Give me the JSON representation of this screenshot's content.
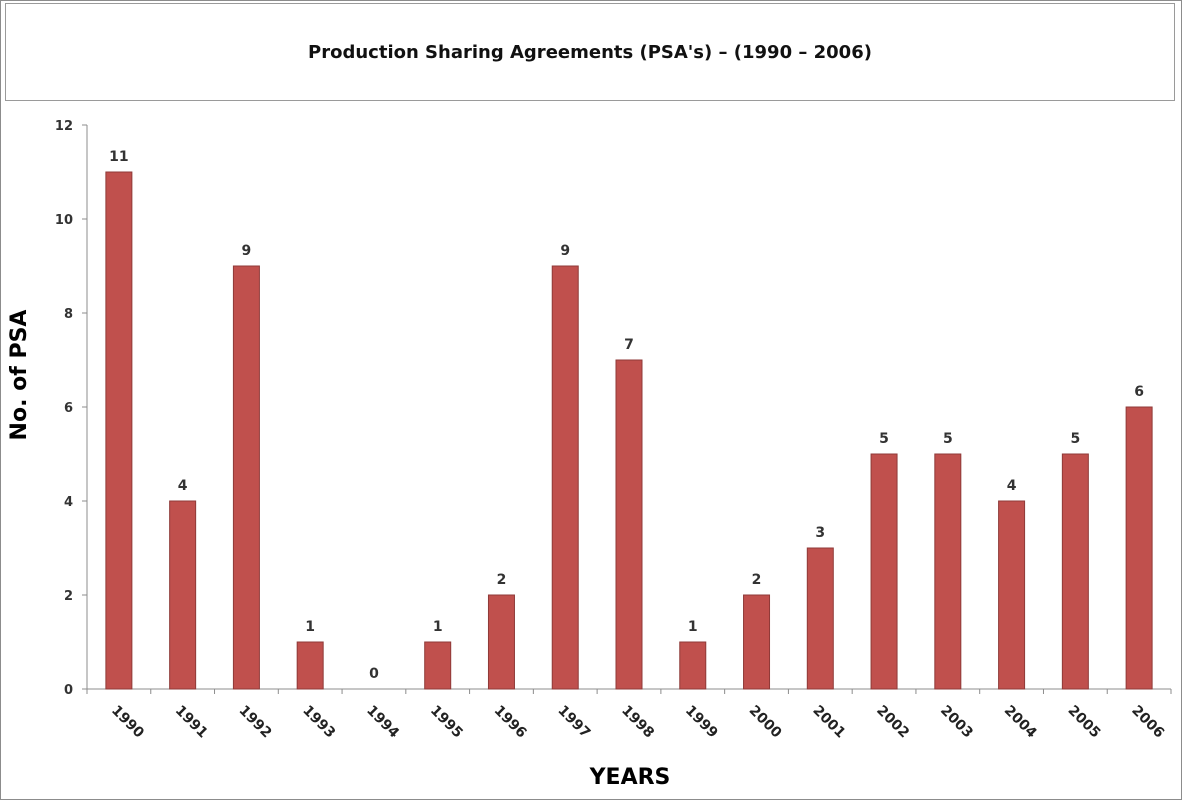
{
  "chart_data": {
    "type": "bar",
    "title": "Production Sharing Agreements (PSA's) – (1990 – 2006)",
    "xlabel": "YEARS",
    "ylabel": "No. of PSA",
    "categories": [
      "1990",
      "1991",
      "1992",
      "1993",
      "1994",
      "1995",
      "1996",
      "1997",
      "1998",
      "1999",
      "2000",
      "2001",
      "2002",
      "2003",
      "2004",
      "2005",
      "2006"
    ],
    "values": [
      11,
      4,
      9,
      1,
      0,
      1,
      2,
      9,
      7,
      1,
      2,
      3,
      5,
      5,
      4,
      5,
      6
    ],
    "ylim": [
      0,
      12
    ],
    "yticks": [
      0,
      2,
      4,
      6,
      8,
      10,
      12
    ],
    "grid": false,
    "legend": "none",
    "bar_color": "#c0504d",
    "bar_edge_color": "#8f3a38",
    "axis_color": "#8c8c8c"
  }
}
